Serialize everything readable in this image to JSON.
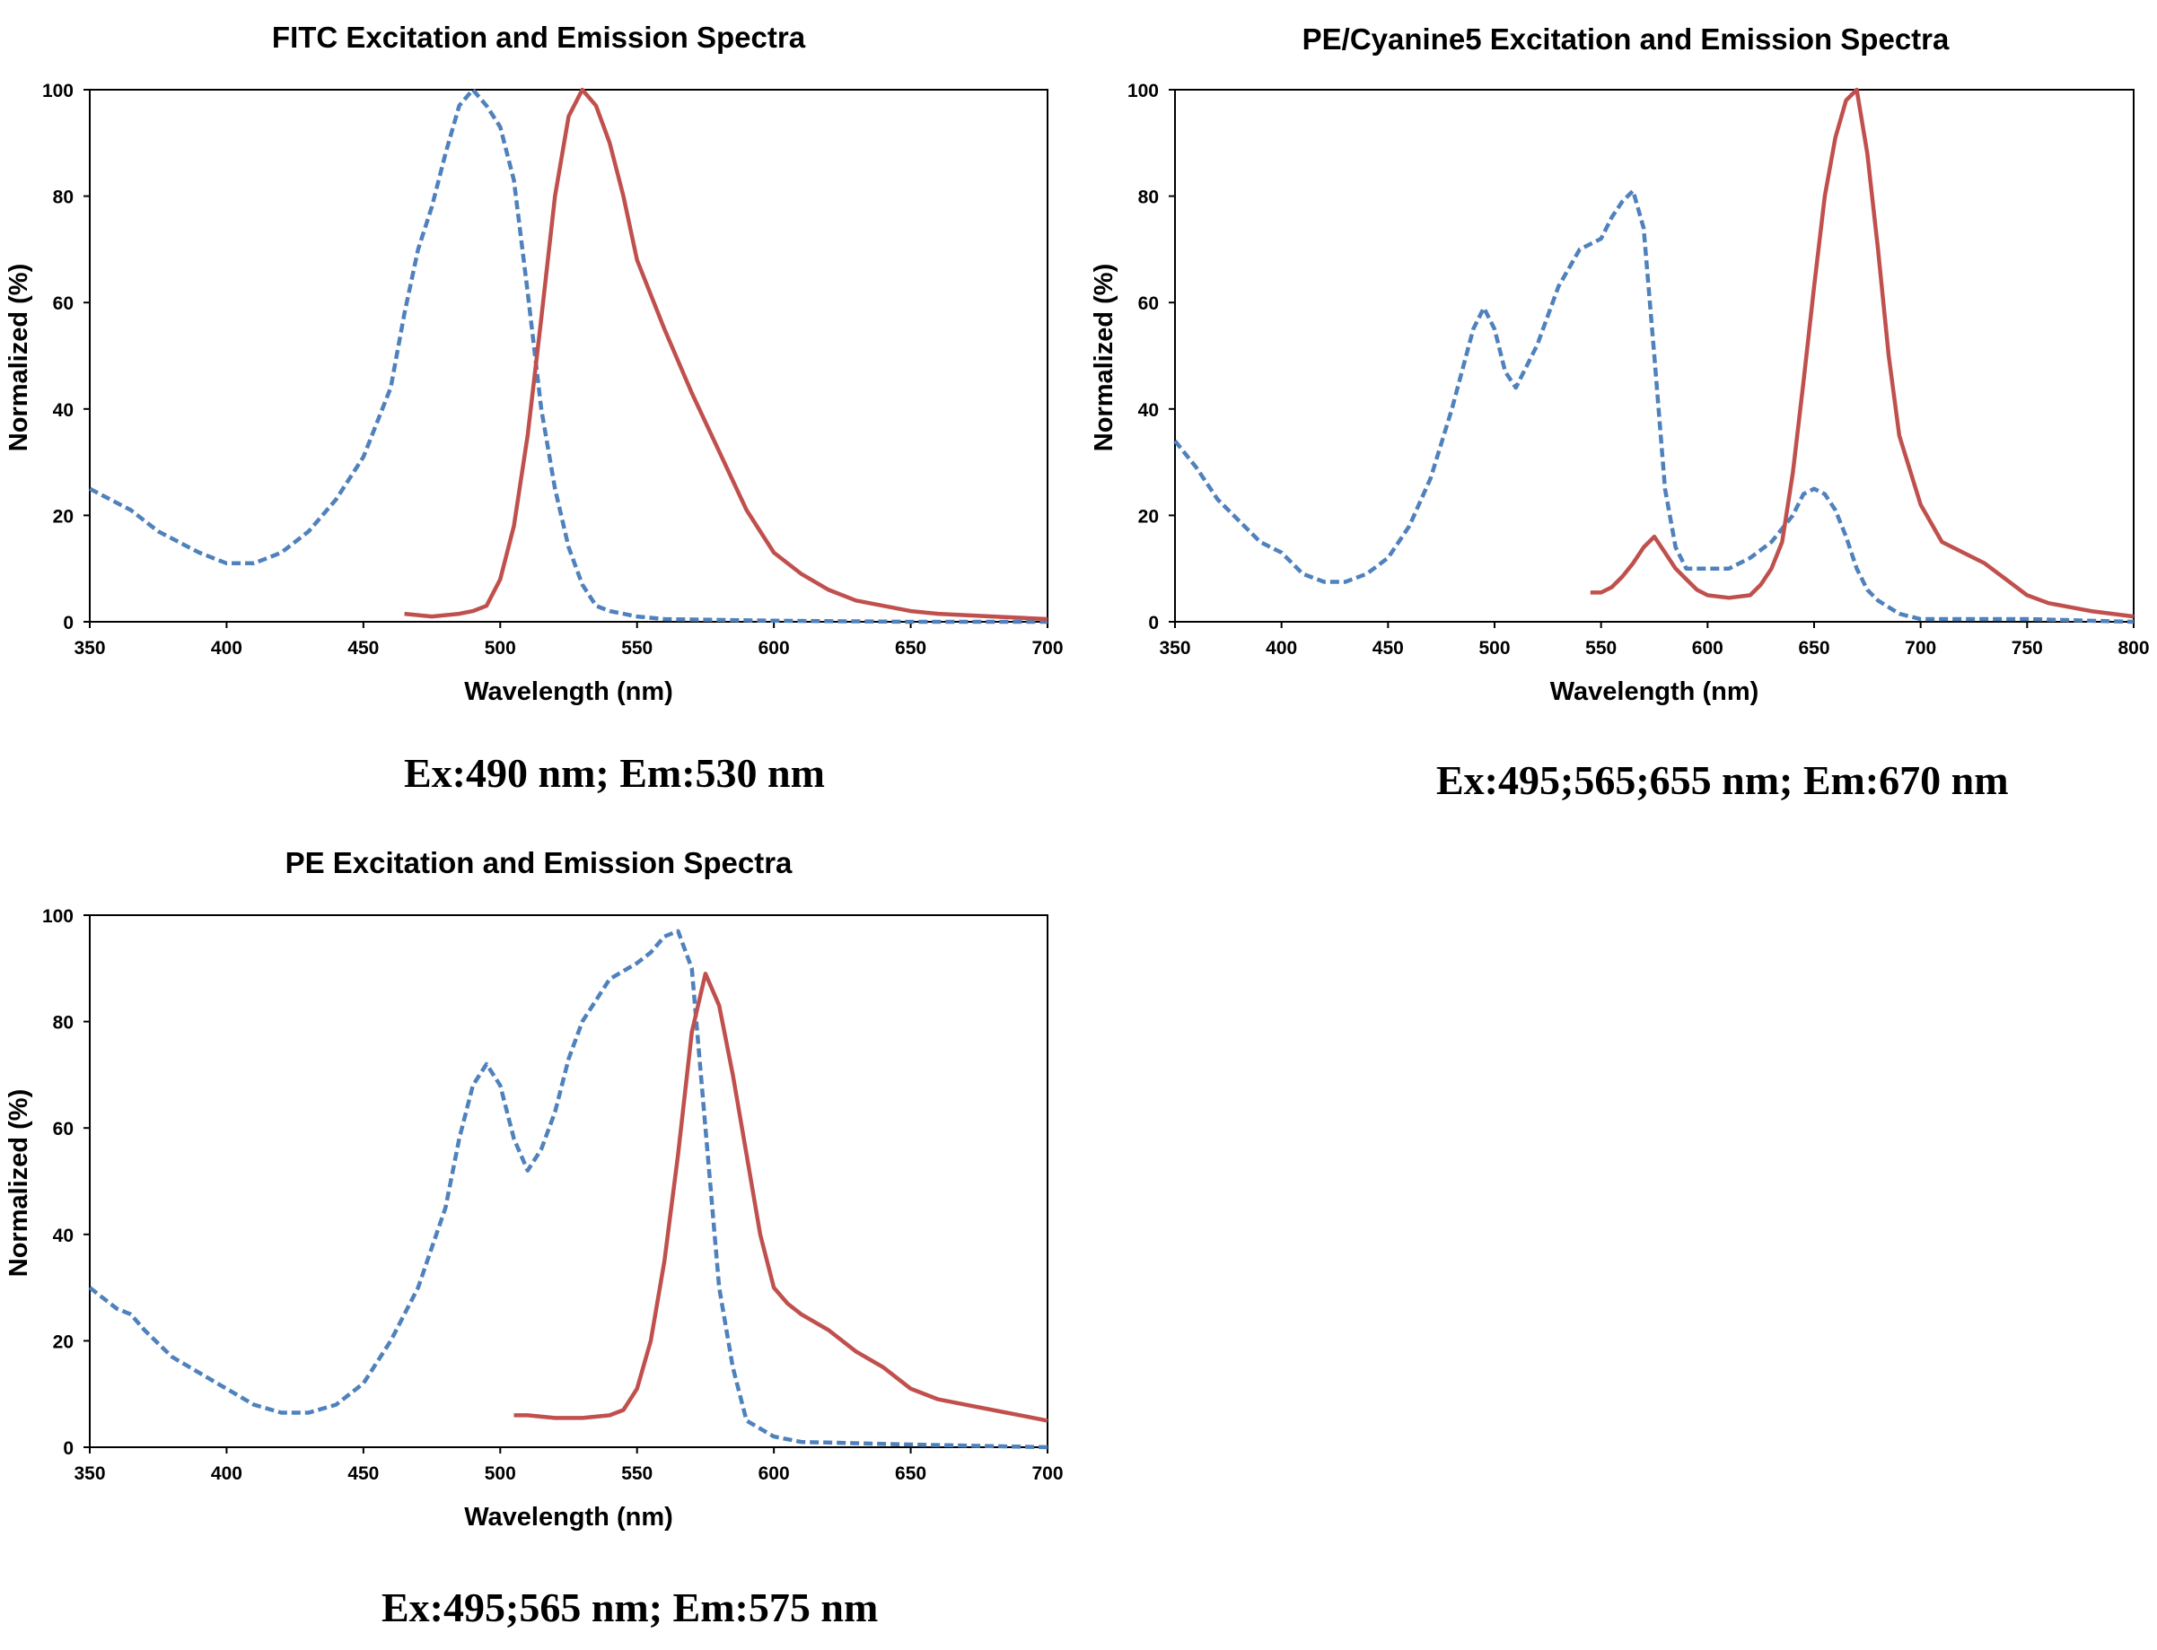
{
  "chart_data": [
    {
      "type": "line",
      "title": "FITC Excitation and Emission Spectra",
      "xlabel": "Wavelength (nm)",
      "ylabel": "Normalized (%)",
      "xlim": [
        350,
        700
      ],
      "ylim": [
        0,
        100
      ],
      "xticks": [
        350,
        400,
        450,
        500,
        550,
        600,
        650,
        700
      ],
      "yticks": [
        0,
        20,
        40,
        60,
        80,
        100
      ],
      "caption": "Ex:490 nm; Em:530 nm",
      "colors": {
        "excitation": "#4f81bd",
        "emission": "#c0504d"
      },
      "series": [
        {
          "name": "Excitation",
          "style": "dashed",
          "color": "#4f81bd",
          "x": [
            350,
            365,
            375,
            390,
            400,
            410,
            420,
            430,
            440,
            450,
            460,
            465,
            470,
            475,
            480,
            485,
            490,
            495,
            500,
            505,
            510,
            515,
            520,
            525,
            530,
            535,
            540,
            550,
            560,
            600,
            650,
            700
          ],
          "y": [
            25,
            21,
            17,
            13,
            11,
            11,
            13,
            17,
            23,
            31,
            44,
            58,
            70,
            78,
            88,
            97,
            100,
            97,
            93,
            83,
            62,
            40,
            25,
            14,
            7,
            3,
            2,
            1,
            0.5,
            0.2,
            0,
            0
          ]
        },
        {
          "name": "Emission",
          "style": "solid",
          "color": "#c0504d",
          "x": [
            465,
            475,
            485,
            490,
            495,
            500,
            505,
            510,
            515,
            520,
            525,
            530,
            535,
            540,
            545,
            550,
            560,
            570,
            580,
            590,
            600,
            610,
            620,
            630,
            640,
            650,
            660,
            680,
            700
          ],
          "y": [
            1.5,
            1,
            1.5,
            2,
            3,
            8,
            18,
            35,
            57,
            80,
            95,
            100,
            97,
            90,
            80,
            68,
            55,
            43,
            32,
            21,
            13,
            9,
            6,
            4,
            3,
            2,
            1.5,
            1,
            0.5
          ]
        }
      ]
    },
    {
      "type": "line",
      "title": "PE/Cyanine5 Excitation and Emission Spectra",
      "xlabel": "Wavelength (nm)",
      "ylabel": "Normalized (%)",
      "xlim": [
        350,
        800
      ],
      "ylim": [
        0,
        100
      ],
      "xticks": [
        350,
        400,
        450,
        500,
        550,
        600,
        650,
        700,
        750,
        800
      ],
      "yticks": [
        0,
        20,
        40,
        60,
        80,
        100
      ],
      "caption": "Ex:495;565;655 nm; Em:670 nm",
      "colors": {
        "excitation": "#4f81bd",
        "emission": "#c0504d"
      },
      "series": [
        {
          "name": "Excitation",
          "style": "dashed",
          "color": "#4f81bd",
          "x": [
            350,
            360,
            370,
            380,
            390,
            400,
            410,
            420,
            430,
            440,
            450,
            460,
            470,
            480,
            490,
            495,
            500,
            505,
            510,
            520,
            530,
            540,
            550,
            555,
            560,
            565,
            570,
            575,
            580,
            585,
            590,
            600,
            610,
            620,
            630,
            640,
            645,
            650,
            655,
            660,
            665,
            670,
            675,
            680,
            690,
            700,
            750,
            800
          ],
          "y": [
            34,
            29,
            23,
            19,
            15,
            13,
            9,
            7.5,
            7.5,
            9,
            12,
            18,
            27,
            40,
            55,
            59,
            55,
            47,
            44,
            52,
            63,
            70,
            72,
            76,
            79,
            81,
            74,
            50,
            25,
            14,
            10,
            10,
            10,
            12,
            15,
            20,
            24,
            25,
            24,
            21,
            16,
            10,
            6,
            4,
            1.5,
            0.5,
            0.5,
            0
          ]
        },
        {
          "name": "Emission",
          "style": "solid",
          "color": "#c0504d",
          "x": [
            545,
            550,
            555,
            560,
            565,
            570,
            575,
            580,
            585,
            590,
            595,
            600,
            610,
            620,
            625,
            630,
            635,
            640,
            645,
            650,
            655,
            660,
            665,
            670,
            675,
            680,
            685,
            690,
            700,
            710,
            720,
            730,
            740,
            750,
            760,
            780,
            800
          ],
          "y": [
            5.5,
            5.5,
            6.5,
            8.5,
            11,
            14,
            16,
            13,
            10,
            8,
            6,
            5,
            4.5,
            5,
            7,
            10,
            15,
            28,
            45,
            63,
            80,
            91,
            98,
            100,
            88,
            70,
            50,
            35,
            22,
            15,
            13,
            11,
            8,
            5,
            3.5,
            2,
            1
          ]
        }
      ]
    },
    {
      "type": "line",
      "title": "PE Excitation and Emission Spectra",
      "xlabel": "Wavelength (nm)",
      "ylabel": "Normalized (%)",
      "xlim": [
        350,
        700
      ],
      "ylim": [
        0,
        100
      ],
      "xticks": [
        350,
        400,
        450,
        500,
        550,
        600,
        650,
        700
      ],
      "yticks": [
        0,
        20,
        40,
        60,
        80,
        100
      ],
      "caption": "Ex:495;565 nm; Em:575 nm",
      "colors": {
        "excitation": "#4f81bd",
        "emission": "#c0504d"
      },
      "series": [
        {
          "name": "Excitation",
          "style": "dashed",
          "color": "#4f81bd",
          "x": [
            350,
            355,
            360,
            365,
            370,
            380,
            390,
            400,
            410,
            420,
            430,
            440,
            450,
            460,
            470,
            480,
            485,
            490,
            495,
            500,
            505,
            510,
            515,
            520,
            525,
            530,
            540,
            550,
            555,
            560,
            565,
            570,
            575,
            580,
            585,
            590,
            600,
            610,
            650,
            700
          ],
          "y": [
            30,
            28,
            26,
            25,
            22,
            17,
            14,
            11,
            8,
            6.5,
            6.5,
            8,
            12,
            20,
            30,
            45,
            58,
            68,
            72,
            68,
            58,
            52,
            56,
            63,
            73,
            80,
            88,
            91,
            93,
            96,
            97,
            90,
            60,
            30,
            15,
            5,
            2,
            1,
            0.5,
            0
          ]
        },
        {
          "name": "Emission",
          "style": "solid",
          "color": "#c0504d",
          "x": [
            505,
            510,
            520,
            530,
            540,
            545,
            550,
            555,
            560,
            565,
            570,
            575,
            580,
            585,
            590,
            595,
            600,
            605,
            610,
            620,
            630,
            640,
            650,
            660,
            670,
            680,
            690,
            700
          ],
          "y": [
            6,
            6,
            5.5,
            5.5,
            6,
            7,
            11,
            20,
            35,
            55,
            78,
            89,
            83,
            70,
            55,
            40,
            30,
            27,
            25,
            22,
            18,
            15,
            11,
            9,
            8,
            7,
            6,
            5
          ]
        }
      ]
    }
  ]
}
